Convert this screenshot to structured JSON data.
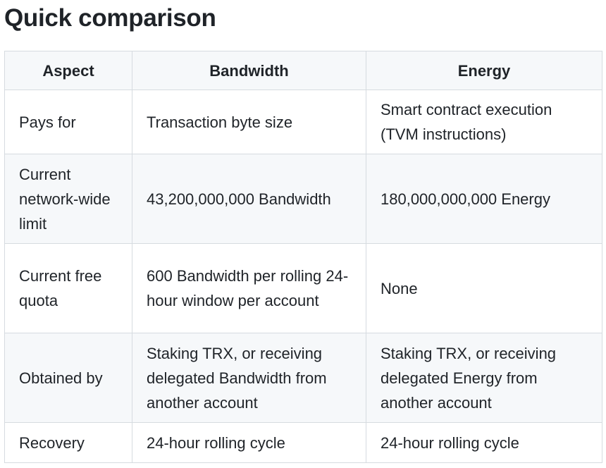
{
  "title": "Quick comparison",
  "table": {
    "headers": [
      "Aspect",
      "Bandwidth",
      "Energy"
    ],
    "rows": [
      [
        "Pays for",
        "Transaction byte size",
        "Smart contract execution (TVM instructions)"
      ],
      [
        "Current network-wide limit",
        "43,200,000,000 Bandwidth",
        "180,000,000,000 Energy"
      ],
      [
        "Current free quota",
        "600 Bandwidth per rolling 24-hour window per account",
        "None"
      ],
      [
        "Obtained by",
        "Staking TRX, or receiving delegated Bandwidth from another account",
        "Staking TRX, or receiving delegated Energy from another account"
      ],
      [
        "Recovery",
        "24-hour rolling cycle",
        "24-hour rolling cycle"
      ]
    ]
  }
}
